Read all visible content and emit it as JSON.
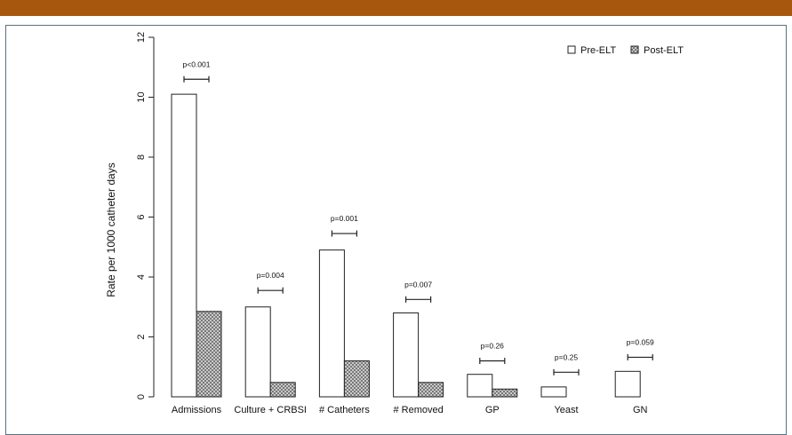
{
  "chart_data": {
    "type": "bar",
    "ylabel": "Rate per 1000 catheter days",
    "ylim": [
      0,
      12
    ],
    "yticks": [
      0,
      2,
      4,
      6,
      8,
      10,
      12
    ],
    "categories": [
      "Admissions",
      "Culture + CRBSI",
      "# Catheters",
      "# Removed",
      "GP",
      "Yeast",
      "GN"
    ],
    "series": [
      {
        "name": "Pre-ELT",
        "values": [
          10.1,
          3.0,
          4.9,
          2.8,
          0.75,
          0.33,
          0.85
        ],
        "fill": "#ffffff"
      },
      {
        "name": "Post-ELT",
        "values": [
          2.85,
          0.48,
          1.2,
          0.48,
          0.26,
          0.0,
          0.0
        ],
        "fill": "#c8c8c8"
      }
    ],
    "significance": [
      "p<0.001",
      "p=0.004",
      "p=0.001",
      "p=0.007",
      "p=0.26",
      "p=0.25",
      "p=0.059"
    ],
    "significance_heights": [
      10.6,
      3.55,
      5.45,
      3.25,
      1.2,
      0.82,
      1.32
    ],
    "legend_position": "top-right",
    "grid": false
  },
  "colors": {
    "header_bar": "#a8570f",
    "frame_border": "#58727c"
  }
}
